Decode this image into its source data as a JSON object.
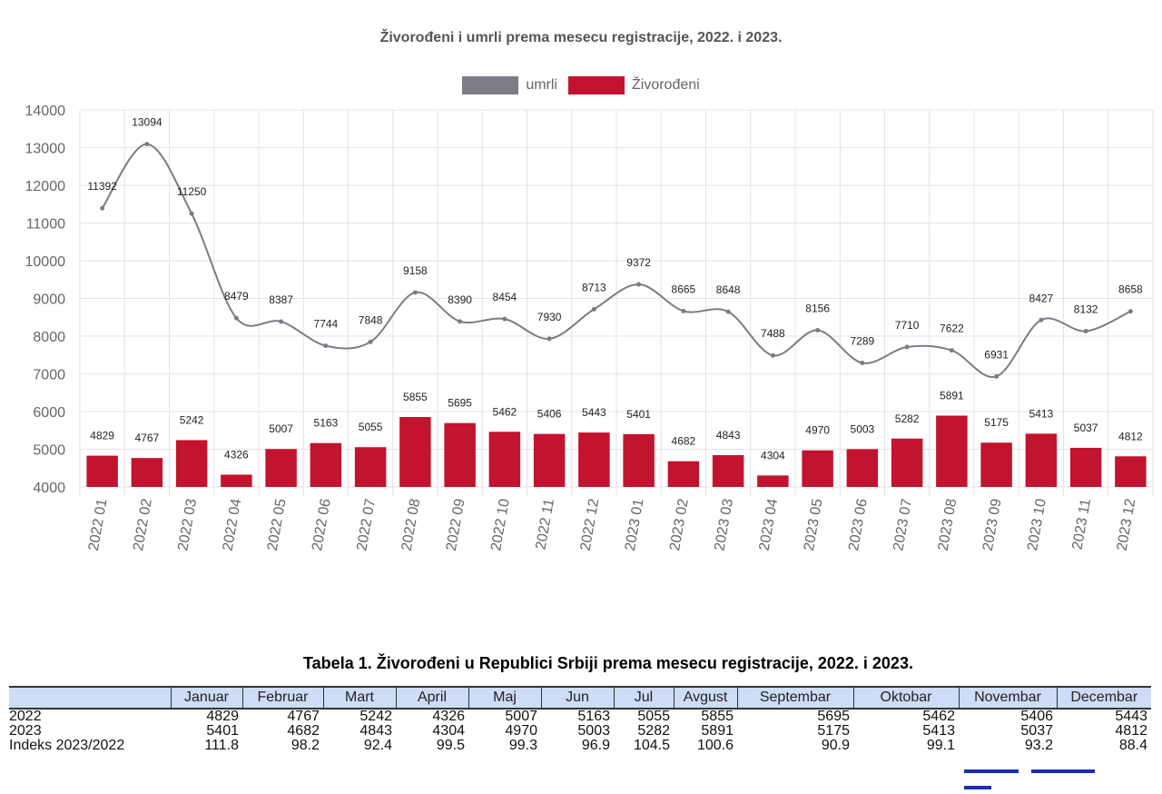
{
  "colors": {
    "umrli": "#7d7b86",
    "zivorodeni": "#c2132f",
    "grid": "#e3e3e3",
    "table_header_bg": "#cfdcf7"
  },
  "chart_data": {
    "type": "bar+line",
    "title": "Živorođeni i umrli  prema mesecu registracije, 2022. i 2023.",
    "legend_position": "top-center",
    "grid": true,
    "ylim": [
      4000,
      14000
    ],
    "yticks": [
      4000,
      5000,
      6000,
      7000,
      8000,
      9000,
      10000,
      11000,
      12000,
      13000,
      14000
    ],
    "xlabel": "",
    "ylabel": "",
    "categories": [
      "2022 01",
      "2022 02",
      "2022 03",
      "2022 04",
      "2022 05",
      "2022 06",
      "2022 07",
      "2022 08",
      "2022 09",
      "2022 10",
      "2022 11",
      "2022 12",
      "2023 01",
      "2023 02",
      "2023 03",
      "2023 04",
      "2023 05",
      "2023 06",
      "2023 07",
      "2023 08",
      "2023 09",
      "2023 10",
      "2023 11",
      "2023 12"
    ],
    "series": [
      {
        "name": "umrli",
        "type": "line",
        "smooth": true,
        "values": [
          11392,
          13094,
          11250,
          8479,
          8387,
          7744,
          7848,
          9158,
          8390,
          8454,
          7930,
          8713,
          9372,
          8665,
          8648,
          7488,
          8156,
          7289,
          7710,
          7622,
          6931,
          8427,
          8132,
          8658
        ]
      },
      {
        "name": "Živorođeni",
        "type": "bar",
        "values": [
          4829,
          4767,
          5242,
          4326,
          5007,
          5163,
          5055,
          5855,
          5695,
          5462,
          5406,
          5443,
          5401,
          4682,
          4843,
          4304,
          4970,
          5003,
          5282,
          5891,
          5175,
          5413,
          5037,
          4812
        ]
      }
    ]
  },
  "table": {
    "title": "Tabela 1. Živorođeni u Republici Srbiji prema mesecu registracije, 2022. i 2023.",
    "columns": [
      "",
      "Januar",
      "Februar",
      "Mart",
      "April",
      "Maj",
      "Jun",
      "Jul",
      "Avgust",
      "Septembar",
      "Oktobar",
      "Novembar",
      "Decembar"
    ],
    "rows": [
      [
        "2022",
        "4829",
        "4767",
        "5242",
        "4326",
        "5007",
        "5163",
        "5055",
        "5855",
        "5695",
        "5462",
        "5406",
        "5443"
      ],
      [
        "2023",
        "5401",
        "4682",
        "4843",
        "4304",
        "4970",
        "5003",
        "5282",
        "5891",
        "5175",
        "5413",
        "5037",
        "4812"
      ],
      [
        "Indeks 2023/2022",
        "111.8",
        "98.2",
        "92.4",
        "99.5",
        "99.3",
        "96.9",
        "104.5",
        "100.6",
        "90.9",
        "99.1",
        "93.2",
        "88.4"
      ]
    ]
  }
}
